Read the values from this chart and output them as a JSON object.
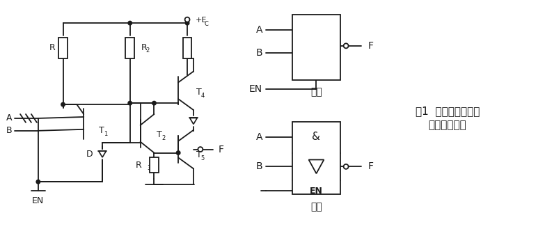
{
  "bg_color": "#ffffff",
  "line_color": "#1a1a1a",
  "title_line1": "图1  高电平使能的三",
  "title_line2": "态门电路结构",
  "label_xiyong": "惯用",
  "label_guobiao": "国标",
  "figsize": [
    7.83,
    3.29
  ],
  "dpi": 100
}
